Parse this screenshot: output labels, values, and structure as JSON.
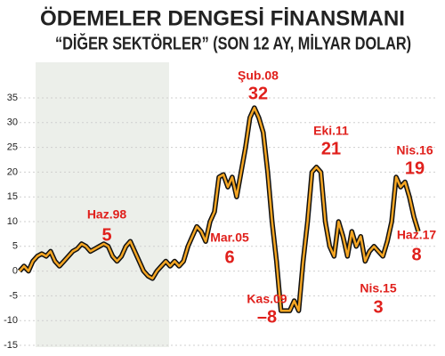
{
  "chart_data": {
    "type": "line",
    "title": "ÖDEMELER DENGESİ FİNANSMANI",
    "subtitle": "“DİĞER SEKTÖRLER” (SON 12 AY, MİLYAR DOLAR)",
    "values": [
      0,
      1,
      0,
      2,
      3,
      3.5,
      3,
      4,
      2,
      1,
      2,
      3,
      4,
      4.5,
      5.5,
      5,
      4,
      4.5,
      5,
      5.5,
      5,
      3,
      2,
      3,
      5,
      6,
      4,
      2,
      0,
      -1,
      -1.5,
      0,
      1,
      2,
      1,
      2,
      1,
      2,
      5,
      7,
      9,
      8,
      6,
      10,
      12,
      19,
      19.5,
      17,
      19,
      15,
      20,
      25,
      31,
      33,
      31,
      28,
      20,
      10,
      2,
      -8,
      -8,
      -8,
      -6,
      -8,
      2,
      10,
      20,
      21,
      20,
      10,
      5,
      3,
      10,
      7,
      3,
      8,
      5,
      7,
      2,
      4,
      5,
      4,
      3,
      6,
      10,
      19,
      17,
      18,
      15,
      11,
      8
    ],
    "color": "#f5a623",
    "ylim": [
      -15,
      35
    ],
    "yticks": [
      -15,
      -10,
      -5,
      0,
      5,
      10,
      15,
      20,
      25,
      30,
      35
    ],
    "grid": true,
    "annotations": [
      {
        "label": "Haz.98",
        "value": 5
      },
      {
        "label": "Mar.05",
        "value": 6
      },
      {
        "label": "Şub.08",
        "value": 32
      },
      {
        "label": "Kas.09",
        "value": -8,
        "value_label": "–8"
      },
      {
        "label": "Eki.11",
        "value": 21
      },
      {
        "label": "Nis.15",
        "value": 3
      },
      {
        "label": "Nis.16",
        "value": 19
      },
      {
        "label": "Haz.17",
        "value": 8
      }
    ]
  }
}
